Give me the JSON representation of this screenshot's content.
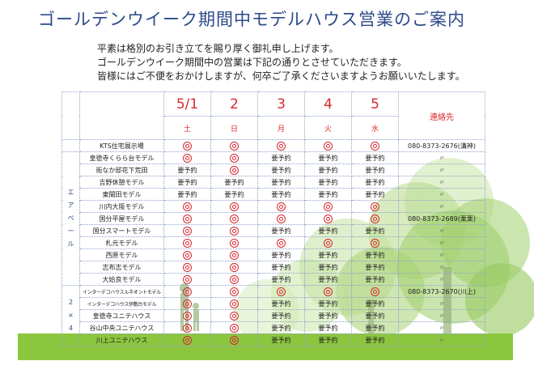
{
  "title": "ゴールデンウイーク期間中モデルハウス営業のご案内",
  "intro": [
    "平素は格別のお引き立てを賜り厚く御礼申し上げます。",
    "ゴールデンウイーク期間中の営業は下記の通りとさせていただきます。",
    "皆様にはご不便をおかけしますが、何卒ご了承くださいますようお願いいたします。"
  ],
  "header": {
    "dates": [
      "5/1",
      "2",
      "3",
      "4",
      "5"
    ],
    "weekdays": [
      "土",
      "日",
      "月",
      "火",
      "水"
    ],
    "contact_label": "連絡先"
  },
  "groups": {
    "airpale": "エアペール",
    "two_by_four": "2×4"
  },
  "rows": [
    {
      "name": "KTS住宅展示場",
      "cells": [
        "O",
        "O",
        "O",
        "O",
        "O"
      ],
      "contact": "080-8373-2676(溝神)"
    },
    {
      "name": "皇徳寺くらら台モデル",
      "cells": [
        "O",
        "O",
        "要予約",
        "要予約",
        "要予約"
      ],
      "contact": "〃"
    },
    {
      "name": "街なか邸花下荒田",
      "cells": [
        "要予約",
        "O",
        "要予約",
        "要予約",
        "要予約"
      ],
      "contact": "〃"
    },
    {
      "name": "吉野休憩モデル",
      "cells": [
        "要予約",
        "要予約",
        "要予約",
        "要予約",
        "要予約"
      ],
      "contact": "〃"
    },
    {
      "name": "東間田モデル",
      "cells": [
        "要予約",
        "要予約",
        "要予約",
        "要予約",
        "要予約"
      ],
      "contact": "〃"
    },
    {
      "name": "川内大阪モデル",
      "cells": [
        "O",
        "O",
        "O",
        "O",
        "O"
      ],
      "contact": "〃"
    },
    {
      "name": "国分平屋モデル",
      "cells": [
        "O",
        "O",
        "O",
        "O",
        "O"
      ],
      "contact": "080-8373-2689(栗栗)"
    },
    {
      "name": "国分スマートモデル",
      "cells": [
        "O",
        "O",
        "要予約",
        "要予約",
        "要予約"
      ],
      "contact": "〃"
    },
    {
      "name": "札元モデル",
      "cells": [
        "O",
        "O",
        "O",
        "O",
        "O"
      ],
      "contact": "〃"
    },
    {
      "name": "西原モデル",
      "cells": [
        "O",
        "O",
        "要予約",
        "要予約",
        "要予約"
      ],
      "contact": "〃"
    },
    {
      "name": "志布志モデル",
      "cells": [
        "O",
        "O",
        "要予約",
        "要予約",
        "要予約"
      ],
      "contact": "〃"
    },
    {
      "name": "大姶良モデル",
      "cells": [
        "O",
        "O",
        "要予約",
        "要予約",
        "要予約"
      ],
      "contact": "〃"
    },
    {
      "name": "インターデコハウスルネオントモデル",
      "cells": [
        "O",
        "O",
        "O",
        "O",
        "O"
      ],
      "contact": "080-8373-2670(川上)"
    },
    {
      "name": "インターデコハウス伊敷台モデル",
      "cells": [
        "O",
        "O",
        "要予約",
        "要予約",
        "要予約"
      ],
      "contact": "〃"
    },
    {
      "name": "皇徳寺ユニテハウス",
      "cells": [
        "O",
        "O",
        "要予約",
        "要予約",
        "要予約"
      ],
      "contact": "〃"
    },
    {
      "name": "谷山中央ユニテハウス",
      "cells": [
        "O",
        "O",
        "要予約",
        "要予約",
        "要予約"
      ],
      "contact": "〃"
    },
    {
      "name": "川上ユニテハウス",
      "cells": [
        "O",
        "O",
        "要予約",
        "要予約",
        "要予約"
      ],
      "contact": "〃"
    }
  ],
  "colors": {
    "title": "#2c4a8a",
    "accent_red": "#d8282f",
    "tree_green": "#8cc63f"
  }
}
